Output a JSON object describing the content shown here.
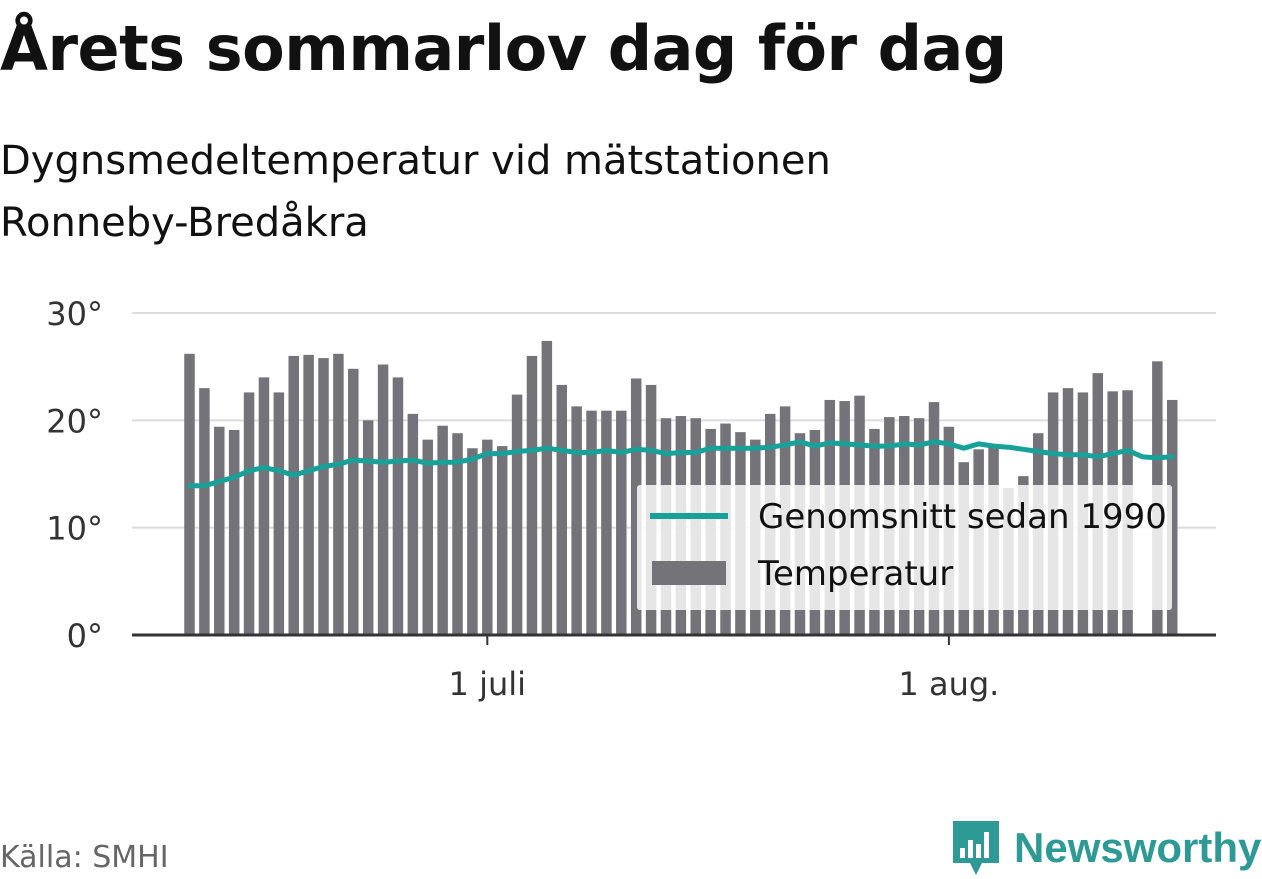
{
  "title": "Årets sommarlov dag för dag",
  "subtitle": "Dygnsmedeltemperatur vid mätstationen Ronneby-Bredåkra",
  "source": "Källa: SMHI",
  "brand": {
    "name": "Newsworthy",
    "icon": "bar-chart-logo-icon",
    "color": "#2e9a96"
  },
  "chart_data": {
    "type": "bar",
    "x_start": "2018-06-11",
    "x_end": "2018-08-20",
    "x_ticks": [
      {
        "date": "2018-07-01",
        "label": "1 juli"
      },
      {
        "date": "2018-08-01",
        "label": "1 aug."
      }
    ],
    "y_ticks": [
      "0°",
      "10°",
      "20°",
      "30°"
    ],
    "ylim": [
      0,
      30
    ],
    "grid": true,
    "legend_position": "bottom-right",
    "series": [
      {
        "name": "Temperatur",
        "type": "bar",
        "color": "#74737a",
        "values": [
          26.2,
          23.0,
          19.4,
          19.1,
          22.6,
          24.0,
          22.6,
          26.0,
          26.1,
          25.8,
          26.2,
          24.8,
          20.0,
          25.2,
          24.0,
          20.6,
          18.2,
          19.5,
          18.8,
          17.4,
          18.2,
          17.6,
          22.4,
          26.0,
          27.4,
          23.3,
          21.3,
          20.9,
          20.9,
          20.9,
          23.9,
          23.3,
          20.2,
          20.4,
          20.2,
          19.2,
          19.7,
          18.9,
          18.2,
          20.6,
          21.3,
          18.8,
          19.1,
          21.9,
          21.8,
          22.3,
          19.2,
          20.3,
          20.4,
          20.2,
          21.7,
          19.4,
          16.1,
          17.3,
          17.6,
          13.7,
          14.8,
          18.8,
          22.6,
          23.0,
          22.6,
          24.4,
          22.7,
          22.8,
          null,
          25.5,
          21.9
        ]
      },
      {
        "name": "Genomsnitt sedan 1990",
        "type": "line",
        "color": "#17a199",
        "values": [
          13.9,
          13.9,
          14.3,
          14.7,
          15.3,
          15.6,
          15.3,
          14.9,
          15.3,
          15.7,
          15.9,
          16.3,
          16.2,
          16.1,
          16.2,
          16.3,
          16.0,
          16.1,
          16.1,
          16.4,
          16.9,
          16.9,
          17.1,
          17.2,
          17.4,
          17.2,
          17.0,
          17.0,
          17.2,
          17.0,
          17.3,
          17.2,
          16.9,
          17.0,
          17.0,
          17.4,
          17.4,
          17.4,
          17.4,
          17.5,
          17.7,
          18.0,
          17.6,
          17.9,
          17.8,
          17.7,
          17.6,
          17.6,
          17.8,
          17.7,
          18.0,
          17.8,
          17.4,
          17.8,
          17.6,
          17.5,
          17.3,
          17.1,
          16.9,
          16.8,
          16.8,
          16.6,
          16.9,
          17.2,
          16.6,
          16.5,
          16.6
        ]
      }
    ]
  }
}
